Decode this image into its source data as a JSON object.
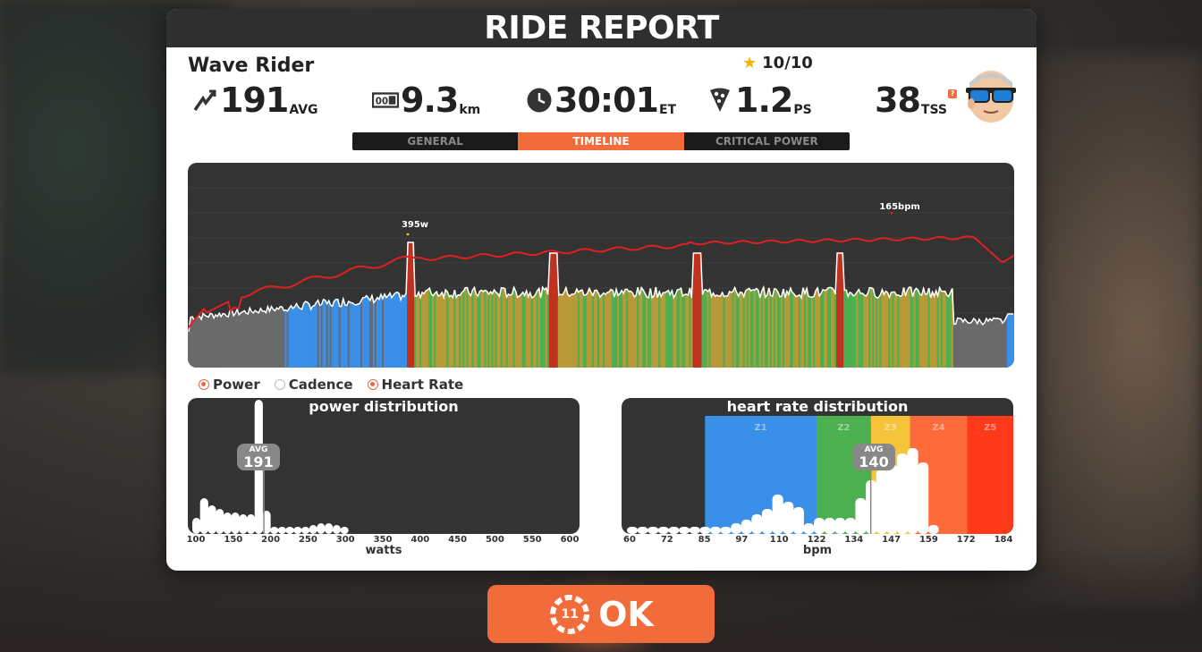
{
  "report": {
    "title": "RIDE REPORT",
    "rider_name": "Wave Rider",
    "rating": "10/10",
    "stats": {
      "power": {
        "value": "191",
        "unit": "AVG",
        "icon": "power-lightning-icon"
      },
      "distance": {
        "value": "9.3",
        "unit": "km",
        "icon": "odometer-icon"
      },
      "time": {
        "value": "30:01",
        "unit": "ET",
        "icon": "clock-icon"
      },
      "pizza": {
        "value": "1.2",
        "unit": "PS",
        "icon": "pizza-slice-icon"
      },
      "tss": {
        "value": "38",
        "unit": "TSS",
        "help": "?"
      }
    }
  },
  "tabs": [
    {
      "label": "GENERAL",
      "active": false
    },
    {
      "label": "TIMELINE",
      "active": true
    },
    {
      "label": "CRITICAL POWER",
      "active": false
    }
  ],
  "timeline": {
    "max_power_label": "395w",
    "max_hr_label": "165bpm"
  },
  "legend": [
    {
      "label": "Power",
      "checked": true
    },
    {
      "label": "Cadence",
      "checked": false
    },
    {
      "label": "Heart Rate",
      "checked": true
    }
  ],
  "power_distribution": {
    "title": "power distribution",
    "avg_label": "AVG",
    "avg_value": "191",
    "axis_title": "watts",
    "ticks": [
      "100",
      "150",
      "200",
      "250",
      "300",
      "350",
      "400",
      "450",
      "500",
      "550",
      "600"
    ]
  },
  "hr_distribution": {
    "title": "heart rate distribution",
    "avg_label": "AVG",
    "avg_value": "140",
    "axis_title": "bpm",
    "ticks": [
      "60",
      "72",
      "85",
      "97",
      "110",
      "122",
      "134",
      "147",
      "159",
      "172",
      "184"
    ],
    "zones": [
      "Z1",
      "Z2",
      "Z3",
      "Z4",
      "Z5"
    ]
  },
  "ok_button": {
    "label": "OK",
    "countdown": "11"
  },
  "colors": {
    "accent": "#f26b3a",
    "panel_dark": "#333333",
    "hr_line": "#e02020",
    "zone_blue": "#3a8fe8",
    "zone_green": "#4caf50",
    "zone_yellow": "#f5c43a",
    "zone_orange": "#ff6a3a",
    "zone_red": "#ff3a1a"
  }
}
